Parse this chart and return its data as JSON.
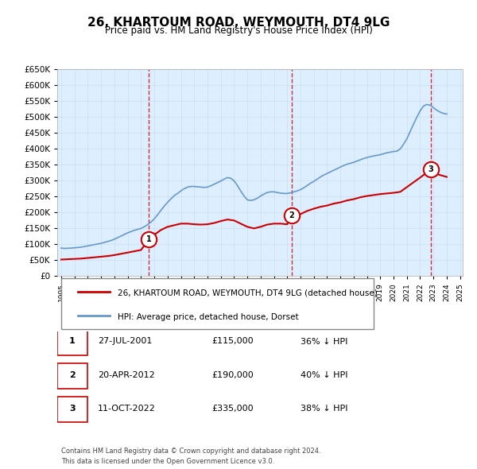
{
  "title": "26, KHARTOUM ROAD, WEYMOUTH, DT4 9LG",
  "subtitle": "Price paid vs. HM Land Registry's House Price Index (HPI)",
  "legend_line1": "26, KHARTOUM ROAD, WEYMOUTH, DT4 9LG (detached house)",
  "legend_line2": "HPI: Average price, detached house, Dorset",
  "footnote1": "Contains HM Land Registry data © Crown copyright and database right 2024.",
  "footnote2": "This data is licensed under the Open Government Licence v3.0.",
  "transactions": [
    {
      "num": 1,
      "date": "27-JUL-2001",
      "price": "£115,000",
      "hpi": "36% ↓ HPI"
    },
    {
      "num": 2,
      "date": "20-APR-2012",
      "price": "£190,000",
      "hpi": "40% ↓ HPI"
    },
    {
      "num": 3,
      "date": "11-OCT-2022",
      "price": "£335,000",
      "hpi": "38% ↓ HPI"
    }
  ],
  "price_color": "#cc0000",
  "hpi_color": "#6699cc",
  "vline_color": "#cc0000",
  "marker_bg": "#ffffff",
  "ylim": [
    0,
    650000
  ],
  "yticks": [
    0,
    50000,
    100000,
    150000,
    200000,
    250000,
    300000,
    350000,
    400000,
    450000,
    500000,
    550000,
    600000,
    650000
  ],
  "grid_color": "#ccddee",
  "background_color": "#ddeeff",
  "plot_bg": "#ddeeff",
  "hpi_data": {
    "dates": [
      1995.0,
      1995.25,
      1995.5,
      1995.75,
      1996.0,
      1996.25,
      1996.5,
      1996.75,
      1997.0,
      1997.25,
      1997.5,
      1997.75,
      1998.0,
      1998.25,
      1998.5,
      1998.75,
      1999.0,
      1999.25,
      1999.5,
      1999.75,
      2000.0,
      2000.25,
      2000.5,
      2000.75,
      2001.0,
      2001.25,
      2001.5,
      2001.75,
      2002.0,
      2002.25,
      2002.5,
      2002.75,
      2003.0,
      2003.25,
      2003.5,
      2003.75,
      2004.0,
      2004.25,
      2004.5,
      2004.75,
      2005.0,
      2005.25,
      2005.5,
      2005.75,
      2006.0,
      2006.25,
      2006.5,
      2006.75,
      2007.0,
      2007.25,
      2007.5,
      2007.75,
      2008.0,
      2008.25,
      2008.5,
      2008.75,
      2009.0,
      2009.25,
      2009.5,
      2009.75,
      2010.0,
      2010.25,
      2010.5,
      2010.75,
      2011.0,
      2011.25,
      2011.5,
      2011.75,
      2012.0,
      2012.25,
      2012.5,
      2012.75,
      2013.0,
      2013.25,
      2013.5,
      2013.75,
      2014.0,
      2014.25,
      2014.5,
      2014.75,
      2015.0,
      2015.25,
      2015.5,
      2015.75,
      2016.0,
      2016.25,
      2016.5,
      2016.75,
      2017.0,
      2017.25,
      2017.5,
      2017.75,
      2018.0,
      2018.25,
      2018.5,
      2018.75,
      2019.0,
      2019.25,
      2019.5,
      2019.75,
      2020.0,
      2020.25,
      2020.5,
      2020.75,
      2021.0,
      2021.25,
      2021.5,
      2021.75,
      2022.0,
      2022.25,
      2022.5,
      2022.75,
      2023.0,
      2023.25,
      2023.5,
      2023.75,
      2024.0
    ],
    "values": [
      88000,
      87000,
      87500,
      88000,
      89000,
      90000,
      91000,
      93000,
      95000,
      97000,
      99000,
      101000,
      103000,
      106000,
      109000,
      112000,
      116000,
      121000,
      126000,
      131000,
      136000,
      140000,
      144000,
      147000,
      150000,
      155000,
      162000,
      170000,
      180000,
      193000,
      207000,
      220000,
      232000,
      243000,
      253000,
      260000,
      268000,
      275000,
      280000,
      282000,
      282000,
      281000,
      280000,
      279000,
      280000,
      284000,
      289000,
      294000,
      299000,
      305000,
      310000,
      308000,
      300000,
      285000,
      268000,
      252000,
      240000,
      238000,
      240000,
      245000,
      252000,
      258000,
      263000,
      265000,
      265000,
      263000,
      261000,
      260000,
      260000,
      262000,
      265000,
      268000,
      272000,
      278000,
      285000,
      292000,
      298000,
      305000,
      312000,
      318000,
      323000,
      328000,
      333000,
      338000,
      343000,
      348000,
      352000,
      355000,
      358000,
      362000,
      366000,
      370000,
      373000,
      376000,
      378000,
      380000,
      382000,
      385000,
      388000,
      390000,
      392000,
      393000,
      400000,
      415000,
      432000,
      455000,
      478000,
      500000,
      520000,
      535000,
      540000,
      538000,
      530000,
      522000,
      516000,
      512000,
      510000
    ]
  },
  "price_data": {
    "dates": [
      1995.0,
      1995.5,
      1996.0,
      1996.5,
      1997.0,
      1997.5,
      1998.0,
      1998.5,
      1999.0,
      1999.5,
      2000.0,
      2000.5,
      2001.0,
      2001.583,
      2002.0,
      2002.5,
      2003.0,
      2003.5,
      2004.0,
      2004.5,
      2005.0,
      2005.5,
      2006.0,
      2006.5,
      2007.0,
      2007.5,
      2008.0,
      2008.5,
      2009.0,
      2009.5,
      2010.0,
      2010.5,
      2011.0,
      2011.5,
      2012.0,
      2012.333,
      2013.0,
      2013.5,
      2014.0,
      2014.5,
      2015.0,
      2015.5,
      2016.0,
      2016.5,
      2017.0,
      2017.5,
      2018.0,
      2018.5,
      2019.0,
      2019.5,
      2020.0,
      2020.5,
      2021.0,
      2021.5,
      2022.0,
      2022.783,
      2023.0,
      2023.5,
      2024.0
    ],
    "values": [
      52000,
      53000,
      54000,
      55000,
      57000,
      59000,
      61000,
      63000,
      66000,
      70000,
      74000,
      78000,
      82000,
      115000,
      130000,
      145000,
      155000,
      160000,
      165000,
      165000,
      163000,
      162000,
      163000,
      167000,
      173000,
      178000,
      175000,
      165000,
      155000,
      150000,
      155000,
      162000,
      165000,
      165000,
      163000,
      190000,
      195000,
      205000,
      212000,
      218000,
      222000,
      228000,
      232000,
      238000,
      242000,
      248000,
      252000,
      255000,
      258000,
      260000,
      262000,
      265000,
      280000,
      295000,
      310000,
      335000,
      325000,
      318000,
      312000
    ]
  },
  "transaction_markers": [
    {
      "date": 2001.583,
      "price": 115000,
      "num": 1
    },
    {
      "date": 2012.333,
      "price": 190000,
      "num": 2
    },
    {
      "date": 2022.783,
      "price": 335000,
      "num": 3
    }
  ],
  "vlines": [
    2001.583,
    2012.333,
    2022.783
  ]
}
